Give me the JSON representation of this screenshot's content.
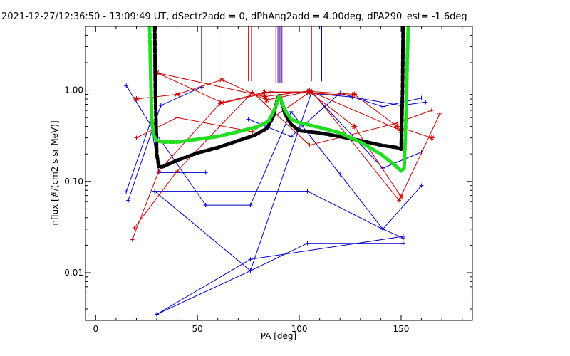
{
  "chart_data": {
    "type": "scatter",
    "title": "2021-12-27/12:36:50 - 13:09:49 UT, dSectr2add = 0, dPhAng2add = 4.00deg, dPA290_est=  -1.6deg",
    "xlabel": "PA [deg]",
    "ylabel": "nflux [#/(cm2 s sr MeV)]",
    "xlim": [
      -5,
      185
    ],
    "ylim": [
      0.003,
      5.0
    ],
    "yscale": "log",
    "grid": false,
    "legend": "none",
    "x_ticks": [
      0,
      50,
      100,
      150
    ],
    "x_tick_labels": [
      "0",
      "50",
      "100",
      "150"
    ],
    "y_ticks": [
      0.01,
      0.1,
      1.0
    ],
    "y_tick_labels": [
      "0.01",
      "0.10",
      "1.00"
    ],
    "colors": {
      "blue": "#0000cc",
      "red": "#cc0000",
      "black": "#000000",
      "green": "#22dd22",
      "purple": "#7a007a"
    },
    "vertical_markers": [
      {
        "x": 52,
        "color": "#0000cc",
        "y_from": 1.25,
        "y_to": 5.0
      },
      {
        "x": 62,
        "color": "#cc0000",
        "y_from": 1.25,
        "y_to": 5.0
      },
      {
        "x": 75,
        "color": "#cc0000",
        "y_from": 1.25,
        "y_to": 5.0
      },
      {
        "x": 76.5,
        "color": "#cc0000",
        "y_from": 1.25,
        "y_to": 5.0
      },
      {
        "x": 88.5,
        "color": "#cc0000",
        "y_from": 1.2,
        "y_to": 5.0
      },
      {
        "x": 89.5,
        "color": "#7a007a",
        "y_from": 1.2,
        "y_to": 5.0
      },
      {
        "x": 90.5,
        "color": "#0000cc",
        "y_from": 1.2,
        "y_to": 5.0
      },
      {
        "x": 91.5,
        "color": "#7a007a",
        "y_from": 1.2,
        "y_to": 5.0
      },
      {
        "x": 106,
        "color": "#cc0000",
        "y_from": 1.25,
        "y_to": 5.0
      },
      {
        "x": 111,
        "color": "#0000cc",
        "y_from": 1.25,
        "y_to": 5.0
      }
    ],
    "series": [
      {
        "color": "#0000cc",
        "marker": "plus",
        "x": [
          15,
          29,
          54
        ],
        "y": [
          1.12,
          0.35,
          0.055
        ]
      },
      {
        "color": "#0000cc",
        "marker": "plus",
        "x": [
          54,
          76,
          96,
          120,
          141,
          160
        ],
        "y": [
          0.055,
          0.055,
          0.58,
          0.12,
          0.03,
          0.09
        ]
      },
      {
        "color": "#0000cc",
        "marker": "plus",
        "x": [
          15,
          27,
          31,
          54
        ],
        "y": [
          0.077,
          0.45,
          0.125,
          0.125
        ]
      },
      {
        "color": "#0000cc",
        "marker": "plus",
        "x": [
          16,
          29,
          32,
          52
        ],
        "y": [
          0.062,
          0.44,
          0.68,
          1.08
        ]
      },
      {
        "color": "#0000cc",
        "marker": "plus",
        "x": [
          29,
          104,
          141,
          151
        ],
        "y": [
          0.078,
          0.078,
          0.03,
          0.024
        ]
      },
      {
        "color": "#0000cc",
        "marker": "plus",
        "x": [
          29,
          76,
          104,
          151
        ],
        "y": [
          0.078,
          0.0105,
          0.021,
          0.021
        ]
      },
      {
        "color": "#0000cc",
        "marker": "plus",
        "x": [
          30,
          76,
          151
        ],
        "y": [
          0.0035,
          0.014,
          0.025
        ]
      },
      {
        "color": "#0000cc",
        "marker": "plus",
        "x": [
          30,
          76,
          106,
          141,
          160
        ],
        "y": [
          0.0035,
          0.0105,
          0.95,
          0.14,
          0.21
        ]
      },
      {
        "color": "#0000cc",
        "marker": "plus",
        "x": [
          75,
          96,
          120,
          141,
          160
        ],
        "y": [
          0.48,
          0.31,
          0.93,
          0.66,
          0.82
        ]
      },
      {
        "color": "#0000cc",
        "marker": "plus",
        "x": [
          85,
          104,
          126,
          150,
          162
        ],
        "y": [
          0.95,
          0.93,
          0.84,
          0.68,
          0.74
        ]
      },
      {
        "color": "#cc0000",
        "marker": "plus",
        "x": [
          18,
          31,
          61,
          86,
          104,
          126
        ],
        "y": [
          0.023,
          0.13,
          0.71,
          0.96,
          0.93,
          0.88
        ]
      },
      {
        "color": "#cc0000",
        "marker": "plus",
        "x": [
          19,
          40,
          77,
          105,
          147,
          165
        ],
        "y": [
          0.031,
          0.13,
          0.95,
          0.25,
          0.43,
          0.6
        ]
      },
      {
        "color": "#cc0000",
        "marker": "plus",
        "x": [
          20,
          40,
          77,
          106,
          149,
          169
        ],
        "y": [
          0.3,
          0.5,
          0.35,
          0.98,
          0.062,
          0.55
        ]
      },
      {
        "color": "#cc0000",
        "marker": "star",
        "x": [
          20,
          40,
          62,
          84,
          105,
          127,
          148,
          165
        ],
        "y": [
          0.8,
          0.9,
          1.3,
          0.78,
          0.97,
          0.9,
          0.4,
          0.3
        ]
      },
      {
        "color": "#cc0000",
        "marker": "star",
        "x": [
          30,
          62,
          83,
          105,
          127,
          150
        ],
        "y": [
          1.55,
          0.73,
          0.95,
          0.96,
          0.4,
          0.068
        ]
      },
      {
        "color": "#cc0000",
        "marker": "star",
        "x": [
          30,
          83,
          105,
          150
        ],
        "y": [
          1.55,
          0.85,
          0.98,
          0.36
        ]
      }
    ],
    "curves": [
      {
        "color": "#000000",
        "style": "dashed-thick",
        "x": [
          29,
          29.3,
          30,
          31,
          33,
          40,
          50,
          60,
          70,
          78,
          84,
          87,
          89,
          90,
          91,
          93,
          96,
          100,
          110,
          120,
          130,
          140,
          148,
          150,
          150.7,
          151
        ],
        "y": [
          5.0,
          1.0,
          0.2,
          0.145,
          0.145,
          0.17,
          0.205,
          0.235,
          0.28,
          0.32,
          0.38,
          0.5,
          0.75,
          0.88,
          0.78,
          0.55,
          0.42,
          0.36,
          0.34,
          0.31,
          0.28,
          0.25,
          0.235,
          0.225,
          1.0,
          5.0
        ]
      },
      {
        "color": "#22dd22",
        "style": "dashed-thick",
        "x": [
          26.5,
          27,
          27.5,
          28.5,
          30,
          33,
          40,
          50,
          60,
          70,
          80,
          85,
          87,
          89,
          90,
          91,
          93,
          96,
          100,
          110,
          120,
          130,
          140,
          147,
          150,
          151.5,
          152.5,
          153,
          153.5
        ],
        "y": [
          5.0,
          1.5,
          0.5,
          0.32,
          0.28,
          0.27,
          0.27,
          0.29,
          0.31,
          0.35,
          0.4,
          0.46,
          0.56,
          0.72,
          0.85,
          0.78,
          0.6,
          0.48,
          0.44,
          0.39,
          0.34,
          0.27,
          0.2,
          0.15,
          0.13,
          0.14,
          0.6,
          2.0,
          5.0
        ]
      }
    ]
  }
}
